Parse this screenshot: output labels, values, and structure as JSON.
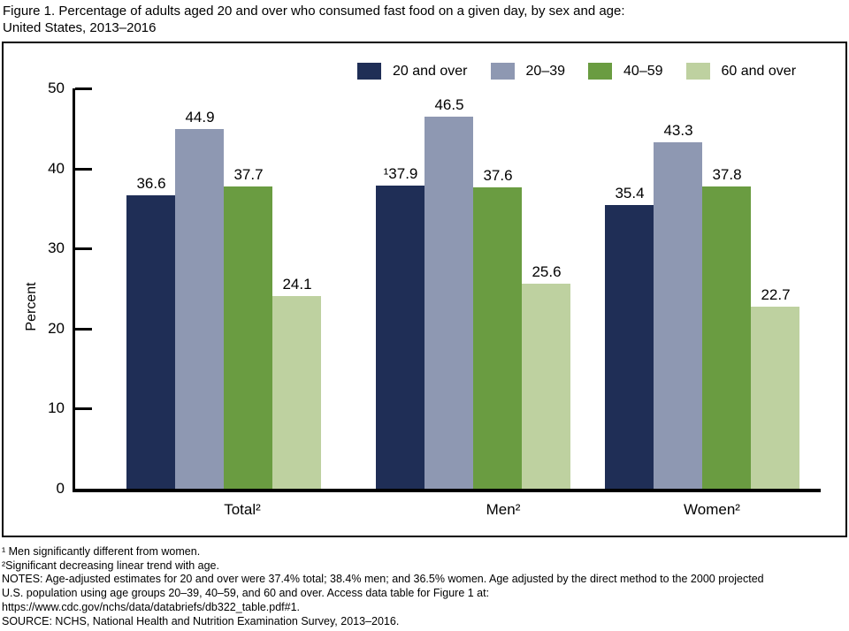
{
  "title": {
    "line1": "Figure 1. Percentage of adults aged 20 and over who consumed fast food on a given day, by sex and age:",
    "line2": "United States, 2013–2016"
  },
  "chart_data": {
    "type": "bar",
    "title": "Percentage of adults aged 20 and over who consumed fast food on a given day, by sex and age: United States, 2013–2016",
    "xlabel": "",
    "ylabel": "Percent",
    "ylim": [
      0,
      50
    ],
    "yticks": [
      0,
      10,
      20,
      30,
      40,
      50
    ],
    "grid": false,
    "legend_position": "top-right",
    "categories": [
      "Total²",
      "Men²",
      "Women²"
    ],
    "series": [
      {
        "name": "20 and over",
        "color": "#1f2e56",
        "values": [
          36.6,
          37.9,
          35.4
        ],
        "labels": [
          "36.6",
          "¹37.9",
          "35.4"
        ]
      },
      {
        "name": "20–39",
        "color": "#8e98b2",
        "values": [
          44.9,
          46.5,
          43.3
        ],
        "labels": [
          "44.9",
          "46.5",
          "43.3"
        ]
      },
      {
        "name": "40–59",
        "color": "#6a9c41",
        "values": [
          37.7,
          37.6,
          37.8
        ],
        "labels": [
          "37.7",
          "37.6",
          "37.8"
        ]
      },
      {
        "name": "60 and over",
        "color": "#bed1a0",
        "values": [
          24.1,
          25.6,
          22.7
        ],
        "labels": [
          "24.1",
          "25.6",
          "22.7"
        ]
      }
    ]
  },
  "footnotes": {
    "fn1": "¹ Men significantly different from women.",
    "fn2": "²Significant decreasing linear trend with age.",
    "notes_line1": "NOTES: Age-adjusted estimates for 20 and over were 37.4% total; 38.4% men; and 36.5% women. Age adjusted by the direct method to the 2000 projected",
    "notes_line2": "U.S. population using age groups 20–39, 40–59, and 60 and over. Access data table for Figure 1 at:",
    "notes_line3": "https://www.cdc.gov/nchs/data/databriefs/db322_table.pdf#1.",
    "source": "SOURCE: NCHS, National Health and Nutrition Examination Survey, 2013–2016."
  }
}
